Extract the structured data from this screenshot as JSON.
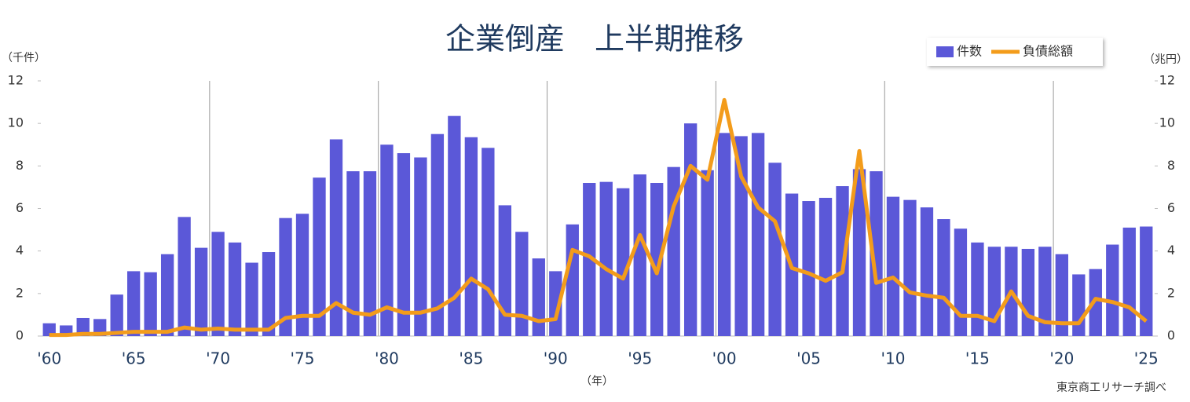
{
  "chart_data": {
    "type": "bar-line",
    "title": "企業倒産　上半期推移",
    "y_label": "（千件）",
    "y2_label": "（兆円）",
    "x_label": "（年）",
    "source": "東京商工リサーチ調べ",
    "categories": [
      "'60",
      null,
      null,
      null,
      null,
      "'65",
      null,
      null,
      null,
      null,
      "'70",
      null,
      null,
      null,
      null,
      "'75",
      null,
      null,
      null,
      null,
      "'80",
      null,
      null,
      null,
      null,
      "'85",
      null,
      null,
      null,
      null,
      "'90",
      null,
      null,
      null,
      null,
      "'95",
      null,
      null,
      null,
      null,
      "'00",
      null,
      null,
      null,
      null,
      "'05",
      null,
      null,
      null,
      null,
      "'10",
      null,
      null,
      null,
      null,
      "'15",
      null,
      null,
      null,
      null,
      "'20",
      null,
      null,
      null,
      null,
      "'25"
    ],
    "series": [
      {
        "name": "件数",
        "type": "bar",
        "color": "#5b58d8",
        "values": [
          0.6,
          0.5,
          0.85,
          0.8,
          1.95,
          3.05,
          3.0,
          3.85,
          5.6,
          4.15,
          4.9,
          4.4,
          3.45,
          3.95,
          5.55,
          5.75,
          7.45,
          9.25,
          7.75,
          7.75,
          9.0,
          8.6,
          8.4,
          9.5,
          10.35,
          9.35,
          8.85,
          6.15,
          4.9,
          3.65,
          3.05,
          5.25,
          7.2,
          7.25,
          6.95,
          7.6,
          7.2,
          7.95,
          10.0,
          7.8,
          9.55,
          9.4,
          9.55,
          8.15,
          6.7,
          6.35,
          6.5,
          7.05,
          7.85,
          7.75,
          6.55,
          6.4,
          6.05,
          5.5,
          5.05,
          4.4,
          4.2,
          4.2,
          4.1,
          4.2,
          3.85,
          2.9,
          3.15,
          4.3,
          5.1,
          5.15
        ]
      },
      {
        "name": "負債総額",
        "type": "line",
        "axis": "y2",
        "color": "#f39c1b",
        "values": [
          0.05,
          0.05,
          0.1,
          0.1,
          0.15,
          0.2,
          0.2,
          0.2,
          0.4,
          0.3,
          0.35,
          0.3,
          0.3,
          0.3,
          0.85,
          0.95,
          0.95,
          1.55,
          1.1,
          1.0,
          1.35,
          1.1,
          1.1,
          1.3,
          1.8,
          2.7,
          2.2,
          1.0,
          0.95,
          0.7,
          0.8,
          4.05,
          3.75,
          3.15,
          2.7,
          4.75,
          2.95,
          6.1,
          8.0,
          7.35,
          11.1,
          7.5,
          6.05,
          5.4,
          3.2,
          2.95,
          2.6,
          3.0,
          8.7,
          2.5,
          2.75,
          2.05,
          1.9,
          1.8,
          0.95,
          0.95,
          0.7,
          2.1,
          0.95,
          0.65,
          0.6,
          0.6,
          1.75,
          1.6,
          1.35,
          0.7
        ]
      }
    ],
    "ylim": [
      0,
      12
    ],
    "yticks": [
      0,
      2,
      4,
      6,
      8,
      10,
      12
    ],
    "y2lim": [
      0,
      12
    ],
    "y2ticks": [
      0,
      2,
      4,
      6,
      8,
      10,
      12
    ]
  }
}
